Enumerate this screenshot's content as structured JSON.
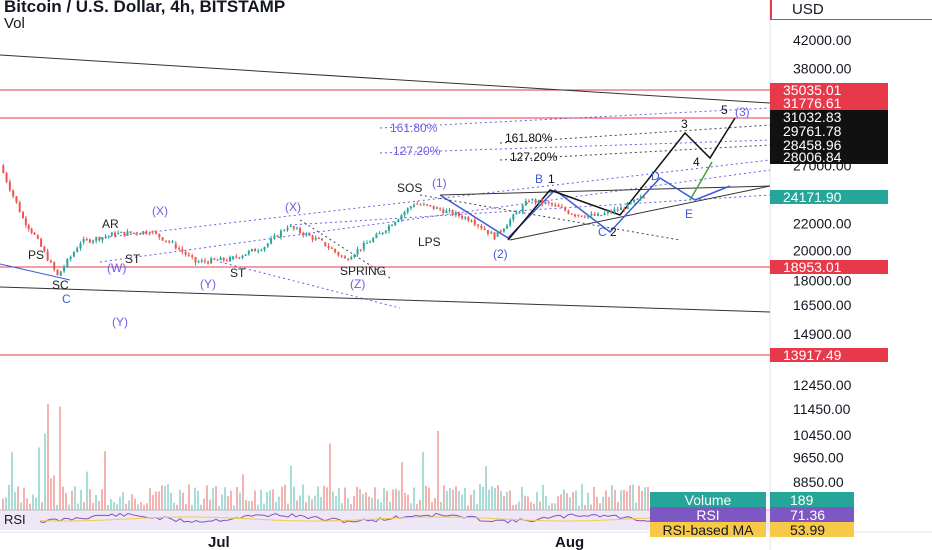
{
  "header": {
    "title": "Bitcoin / U.S. Dollar, 4h, BITSTAMP",
    "volume_label": "Vol",
    "currency": "USD"
  },
  "colors": {
    "up": "#26a69a",
    "down": "#ef5350",
    "red_line": "#e8394b",
    "wave_purple": "#6c5ce7",
    "wave_blue": "#3f5bd8",
    "green": "#43a047",
    "rsi": "#7e57c2",
    "rsi_ma": "#f7c948"
  },
  "chart_data": {
    "type": "candlestick",
    "symbol": "Bitcoin / U.S. Dollar",
    "interval": "4h",
    "exchange": "BITSTAMP",
    "y_scale": "log",
    "y_ticks": [
      42000,
      38000,
      27000,
      22000,
      20000,
      18000,
      16500,
      14900,
      12450,
      11450,
      10450,
      9650,
      8850
    ],
    "y_tick_labels": [
      "42000.00",
      "38000.00",
      "27000.00",
      "22000.00",
      "20000.00",
      "18000.00",
      "16500.00",
      "14900.00",
      "12450.00",
      "11450.00",
      "10450.00",
      "9650.00",
      "8850.00"
    ],
    "x_tick_labels": [
      "Jul",
      "Aug"
    ],
    "price_series": [
      {
        "x": "Jun 13",
        "y": 27000
      },
      {
        "x": "Jun 15",
        "y": 22400
      },
      {
        "x": "Jun 16",
        "y": 21100
      },
      {
        "x": "Jun 18",
        "y": 18300
      },
      {
        "x": "Jun 20",
        "y": 20600
      },
      {
        "x": "Jun 23",
        "y": 21200
      },
      {
        "x": "Jun 26",
        "y": 21400
      },
      {
        "x": "Jun 28",
        "y": 20500
      },
      {
        "x": "Jun 30",
        "y": 19200
      },
      {
        "x": "Jul 3",
        "y": 19400
      },
      {
        "x": "Jul 6",
        "y": 20300
      },
      {
        "x": "Jul 8",
        "y": 21800
      },
      {
        "x": "Jul 11",
        "y": 20600
      },
      {
        "x": "Jul 13",
        "y": 19400
      },
      {
        "x": "Jul 16",
        "y": 21200
      },
      {
        "x": "Jul 19",
        "y": 23600
      },
      {
        "x": "Jul 21",
        "y": 23200
      },
      {
        "x": "Jul 24",
        "y": 22300
      },
      {
        "x": "Jul 26",
        "y": 21000
      },
      {
        "x": "Jul 29",
        "y": 23900
      },
      {
        "x": "Jul 31",
        "y": 23500
      },
      {
        "x": "Aug 2",
        "y": 22700
      },
      {
        "x": "Aug 4",
        "y": 22600
      },
      {
        "x": "Aug 6",
        "y": 23200
      },
      {
        "x": "Aug 8",
        "y": 24171.9
      }
    ],
    "horizontal_levels": [
      35035.01,
      31776.61,
      18953.01,
      13917.49
    ],
    "price_labels": [
      {
        "text": "35035.01",
        "style": "red"
      },
      {
        "text": "31776.61",
        "style": "red"
      },
      {
        "text": "31032.83",
        "style": "black"
      },
      {
        "text": "29761.78",
        "style": "black"
      },
      {
        "text": "28458.96",
        "style": "black"
      },
      {
        "text": "28006.84",
        "style": "black"
      },
      {
        "text": "24171.90",
        "style": "green"
      },
      {
        "text": "18953.01",
        "style": "red"
      },
      {
        "text": "13917.49",
        "style": "red"
      }
    ],
    "annotations": [
      "PS",
      "SC",
      "C",
      "AR",
      "ST",
      "(W)",
      "(X)",
      "ST",
      "(Y)",
      "(Y)",
      "(X)",
      "SPRING",
      "(Z)",
      "SOS",
      "(1)",
      "LPS",
      "(2)",
      "B",
      "1",
      "C",
      "2",
      "3",
      "4",
      "5",
      "(3)",
      "D",
      "E",
      "161.80%",
      "127.20%",
      "161.80%",
      "127.20%"
    ],
    "indicators": {
      "volume": {
        "label": "Volume",
        "value": "189"
      },
      "rsi": {
        "label": "RSI",
        "value": "71.36"
      },
      "rsi_ma": {
        "label": "RSI-based MA",
        "value": "53.99"
      }
    },
    "rsi_panel_label": "RSI"
  }
}
